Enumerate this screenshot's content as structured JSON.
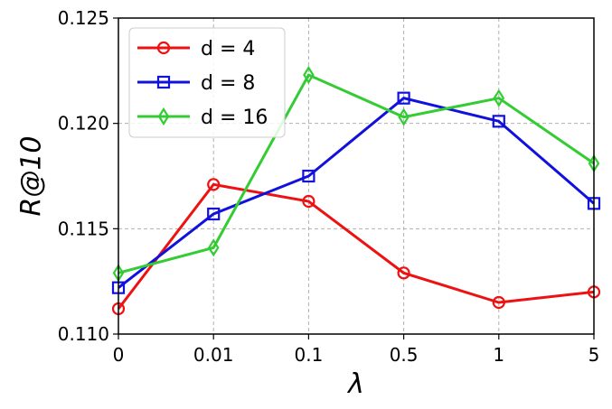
{
  "chart_data": {
    "type": "line",
    "xlabel": "λ",
    "ylabel": "R@10",
    "categories": [
      "0",
      "0.01",
      "0.1",
      "0.5",
      "1",
      "5"
    ],
    "ylim": [
      0.11,
      0.125
    ],
    "yticks": [
      "0.110",
      "0.115",
      "0.120",
      "0.125"
    ],
    "grid": true,
    "legend_position": "top-left",
    "series": [
      {
        "name": "d = 4",
        "color": "#ee1111",
        "marker": "circle",
        "values": [
          0.1112,
          0.1171,
          0.1163,
          0.1129,
          0.1115,
          0.112
        ]
      },
      {
        "name": "d = 8",
        "color": "#1111dd",
        "marker": "square",
        "values": [
          0.1122,
          0.1157,
          0.1175,
          0.1212,
          0.1201,
          0.1162
        ]
      },
      {
        "name": "d = 16",
        "color": "#33cc33",
        "marker": "diamond",
        "values": [
          0.1129,
          0.1141,
          0.1223,
          0.1203,
          0.1212,
          0.1181
        ]
      }
    ]
  }
}
